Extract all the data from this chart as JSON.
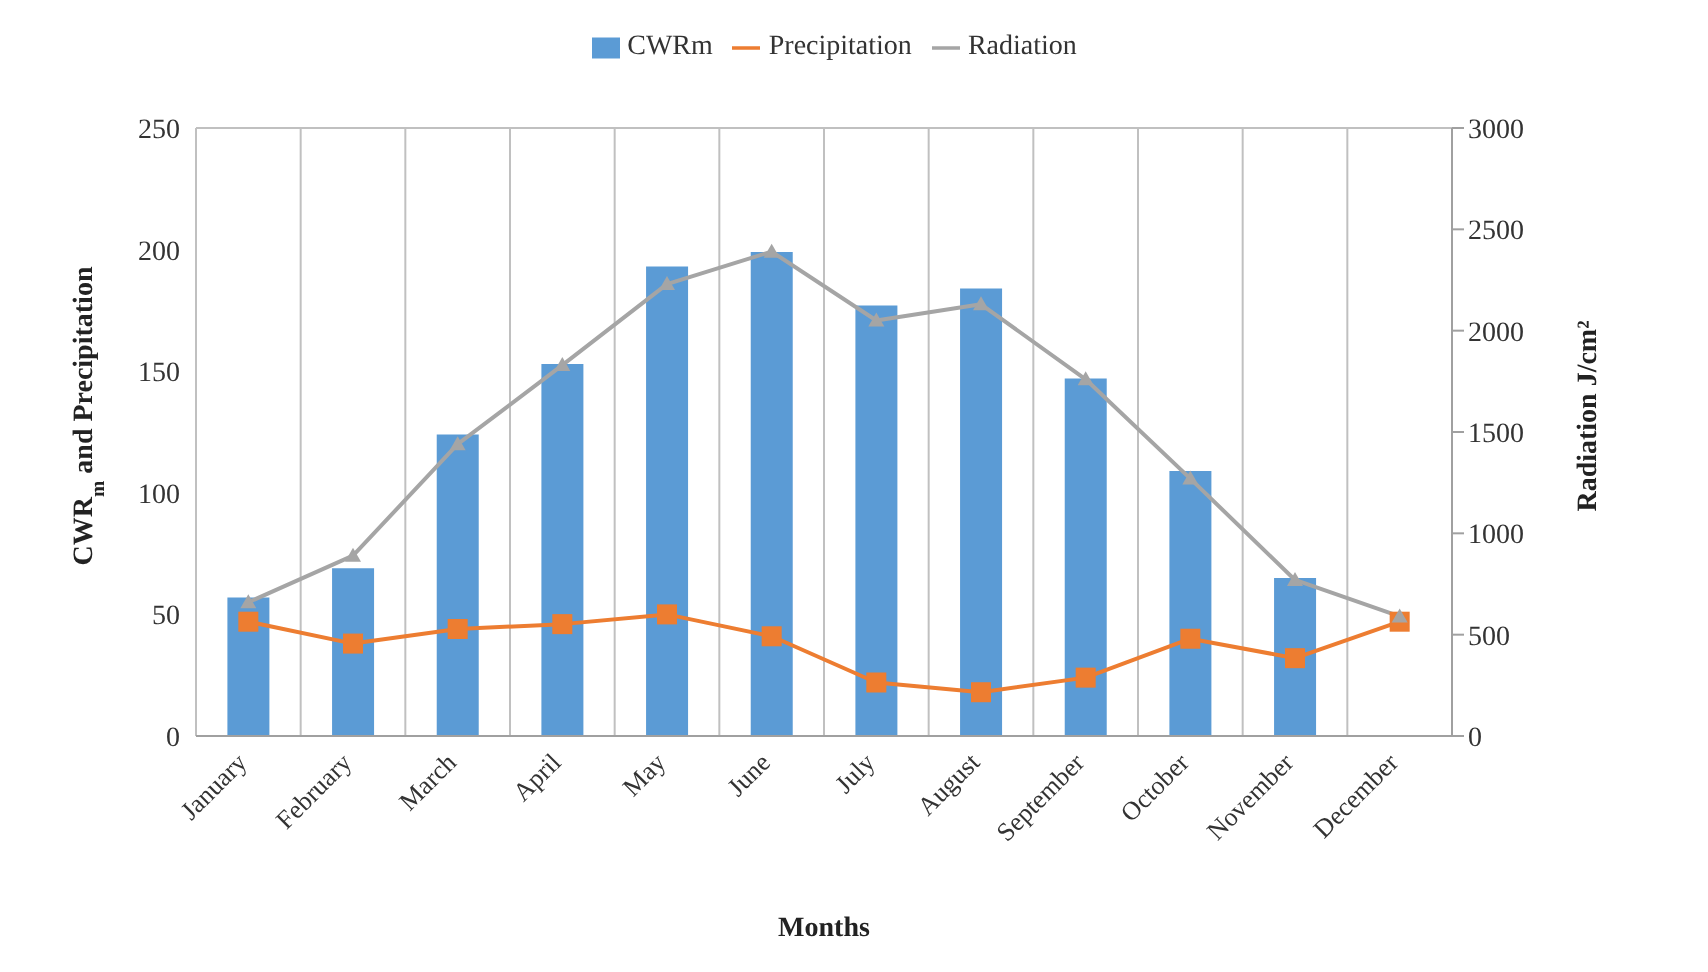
{
  "chart_data": {
    "type": "bar",
    "categories": [
      "January",
      "February",
      "March",
      "April",
      "May",
      "June",
      "July",
      "August",
      "September",
      "October",
      "November",
      "December"
    ],
    "series": [
      {
        "name": "CWRm",
        "color": "#5b9bd5",
        "values": [
          57,
          69,
          124,
          153,
          193,
          199,
          177,
          184,
          147,
          109,
          65,
          null
        ]
      },
      {
        "name": "Precipitation",
        "type": "line",
        "marker": "square",
        "color": "#ed7d31",
        "values": [
          47,
          38,
          44,
          46,
          50,
          41,
          22,
          18,
          24,
          40,
          32,
          47
        ]
      },
      {
        "name": "Radiation",
        "type": "line",
        "marker": "triangle",
        "axis": "y2",
        "color": "#a5a5a5",
        "values": [
          660,
          890,
          1440,
          1830,
          2230,
          2390,
          2050,
          2130,
          1760,
          1270,
          770,
          590
        ]
      }
    ],
    "xlabel": "Months",
    "ylabel": "CWR$_{m}$ and Precipitation",
    "y2label": "Radiation J/cm²",
    "ylim": [
      0,
      250
    ],
    "yticks": [
      0,
      50,
      100,
      150,
      200,
      250
    ],
    "y2lim": [
      0,
      3000
    ],
    "y2ticks": [
      0,
      500,
      1000,
      1500,
      2000,
      2500,
      3000
    ],
    "grid": true,
    "legend": "top"
  }
}
